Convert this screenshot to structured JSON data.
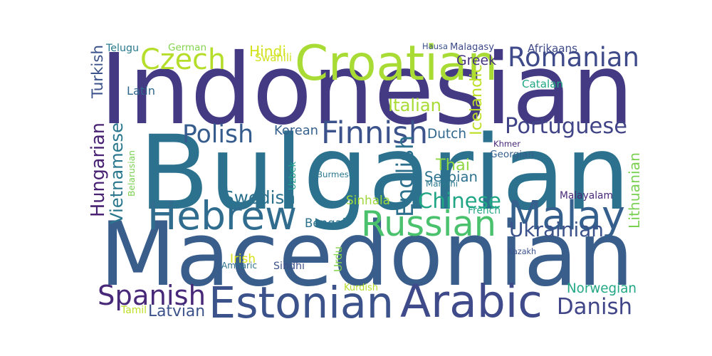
{
  "words": [
    {
      "text": "Macedonian",
      "color": "#3a5e8c"
    },
    {
      "text": "Bulgarian",
      "color": "#2c728e"
    },
    {
      "text": "Indonesian",
      "color": "#443983"
    },
    {
      "text": "Estonian",
      "color": "#3b528b"
    },
    {
      "text": "Arabic",
      "color": "#3e4a89"
    },
    {
      "text": "Hebrew",
      "color": "#2f6c8e"
    },
    {
      "text": "Croatian",
      "color": "#a8db34"
    },
    {
      "text": "Russian",
      "color": "#4ac16d"
    },
    {
      "text": "Malay",
      "color": "#35608d"
    },
    {
      "text": "Romanian",
      "color": "#3e4a89"
    },
    {
      "text": "Spanish",
      "color": "#482878"
    },
    {
      "text": "Czech",
      "color": "#b5de2b"
    },
    {
      "text": "Finnish",
      "color": "#3b528b"
    },
    {
      "text": "Danish",
      "color": "#404688"
    },
    {
      "text": "Portuguese",
      "color": "#414487"
    },
    {
      "text": "Chinese",
      "color": "#21a685"
    },
    {
      "text": "Ukrainian",
      "color": "#3b528b"
    },
    {
      "text": "Polish",
      "color": "#365c8d"
    },
    {
      "text": "Swedish",
      "color": "#2c728e"
    },
    {
      "text": "Hungarian",
      "color": "#482173"
    },
    {
      "text": "Vietnamese",
      "color": "#2a778e"
    },
    {
      "text": "English",
      "color": "#2d708e"
    },
    {
      "text": "Turkish",
      "color": "#3b528b"
    },
    {
      "text": "Norwegian",
      "color": "#22a884"
    },
    {
      "text": "Latvian",
      "color": "#3b528b"
    },
    {
      "text": "Serbian",
      "color": "#2c728e"
    },
    {
      "text": "Italian",
      "color": "#a8db34"
    },
    {
      "text": "Lithuanian",
      "color": "#7ad151"
    },
    {
      "text": "Icelandic",
      "color": "#bddf26"
    },
    {
      "text": "Korean",
      "color": "#35608d"
    },
    {
      "text": "Dutch",
      "color": "#31688e"
    },
    {
      "text": "Greek",
      "color": "#46327e"
    },
    {
      "text": "Hindi",
      "color": "#d2e21b"
    },
    {
      "text": "German",
      "color": "#84d44b"
    },
    {
      "text": "Thai",
      "color": "#8fd744"
    },
    {
      "text": "Bengali",
      "color": "#2c728e"
    },
    {
      "text": "Sinhala",
      "color": "#9dd93b"
    },
    {
      "text": "Catalan",
      "color": "#22a884"
    },
    {
      "text": "Telugu",
      "color": "#29798e"
    },
    {
      "text": "Malagasy",
      "color": "#3e4a89"
    },
    {
      "text": "Afrikaans",
      "color": "#3e4a89"
    },
    {
      "text": "Hausa",
      "color": "#3b528b"
    },
    {
      "text": "Swahili",
      "color": "#d0e11c"
    },
    {
      "text": "Latin",
      "color": "#31688e"
    },
    {
      "text": "Belarusian",
      "color": "#7ad151"
    },
    {
      "text": "Uzbek",
      "color": "#1f9e89"
    },
    {
      "text": "Burmese",
      "color": "#2a778e"
    },
    {
      "text": "Marathi",
      "color": "#2a788e"
    },
    {
      "text": "Khmer",
      "color": "#482878"
    },
    {
      "text": "Georgian",
      "color": "#355f8d"
    },
    {
      "text": "Malayalam",
      "color": "#482878"
    },
    {
      "text": "French",
      "color": "#22a884"
    },
    {
      "text": "Kazakh",
      "color": "#3b528b"
    },
    {
      "text": "Urdu",
      "color": "#84d44b"
    },
    {
      "text": "Irish",
      "color": "#d8e219"
    },
    {
      "text": "Amharic",
      "color": "#2c728e"
    },
    {
      "text": "Sindhi",
      "color": "#3b528b"
    },
    {
      "text": "Kurdish",
      "color": "#b5de2b"
    },
    {
      "text": "Tamil",
      "color": "#bddf26"
    }
  ]
}
